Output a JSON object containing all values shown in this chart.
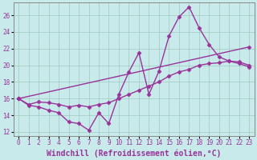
{
  "xlabel": "Windchill (Refroidissement éolien,°C)",
  "ylabel": "",
  "xlim": [
    -0.5,
    23.5
  ],
  "ylim": [
    11.5,
    27.5
  ],
  "yticks": [
    12,
    14,
    16,
    18,
    20,
    22,
    24,
    26
  ],
  "xticks": [
    0,
    1,
    2,
    3,
    4,
    5,
    6,
    7,
    8,
    9,
    10,
    11,
    12,
    13,
    14,
    15,
    16,
    17,
    18,
    19,
    20,
    21,
    22,
    23
  ],
  "background_color": "#c8eaea",
  "grid_color": "#a0c8c0",
  "line_color": "#993399",
  "line1_x": [
    0,
    1,
    2,
    3,
    4,
    5,
    6,
    7,
    8,
    9,
    10,
    11,
    12,
    13,
    14,
    15,
    16,
    17,
    18,
    19,
    20,
    21,
    22,
    23
  ],
  "line1_y": [
    16.0,
    15.2,
    15.0,
    14.6,
    14.3,
    13.2,
    13.0,
    12.2,
    14.3,
    13.0,
    16.5,
    19.2,
    21.5,
    16.5,
    19.3,
    23.5,
    25.8,
    27.0,
    24.5,
    22.5,
    21.0,
    20.5,
    20.2,
    19.8
  ],
  "line2_x": [
    0,
    1,
    2,
    3,
    4,
    5,
    6,
    7,
    8,
    9,
    10,
    11,
    12,
    13,
    14,
    15,
    16,
    17,
    18,
    19,
    20,
    21,
    22,
    23
  ],
  "line2_y": [
    16.0,
    15.3,
    15.6,
    15.5,
    15.3,
    15.0,
    15.2,
    15.0,
    15.3,
    15.5,
    16.0,
    16.5,
    17.0,
    17.5,
    18.0,
    18.7,
    19.2,
    19.5,
    20.0,
    20.2,
    20.3,
    20.5,
    20.4,
    20.0
  ],
  "line3_x": [
    0,
    23
  ],
  "line3_y": [
    16.0,
    22.2
  ],
  "marker": "D",
  "markersize": 2.5,
  "linewidth": 1.0,
  "tick_fontsize": 5.5,
  "label_fontsize": 7.0,
  "fig_bg": "#c8eaea"
}
